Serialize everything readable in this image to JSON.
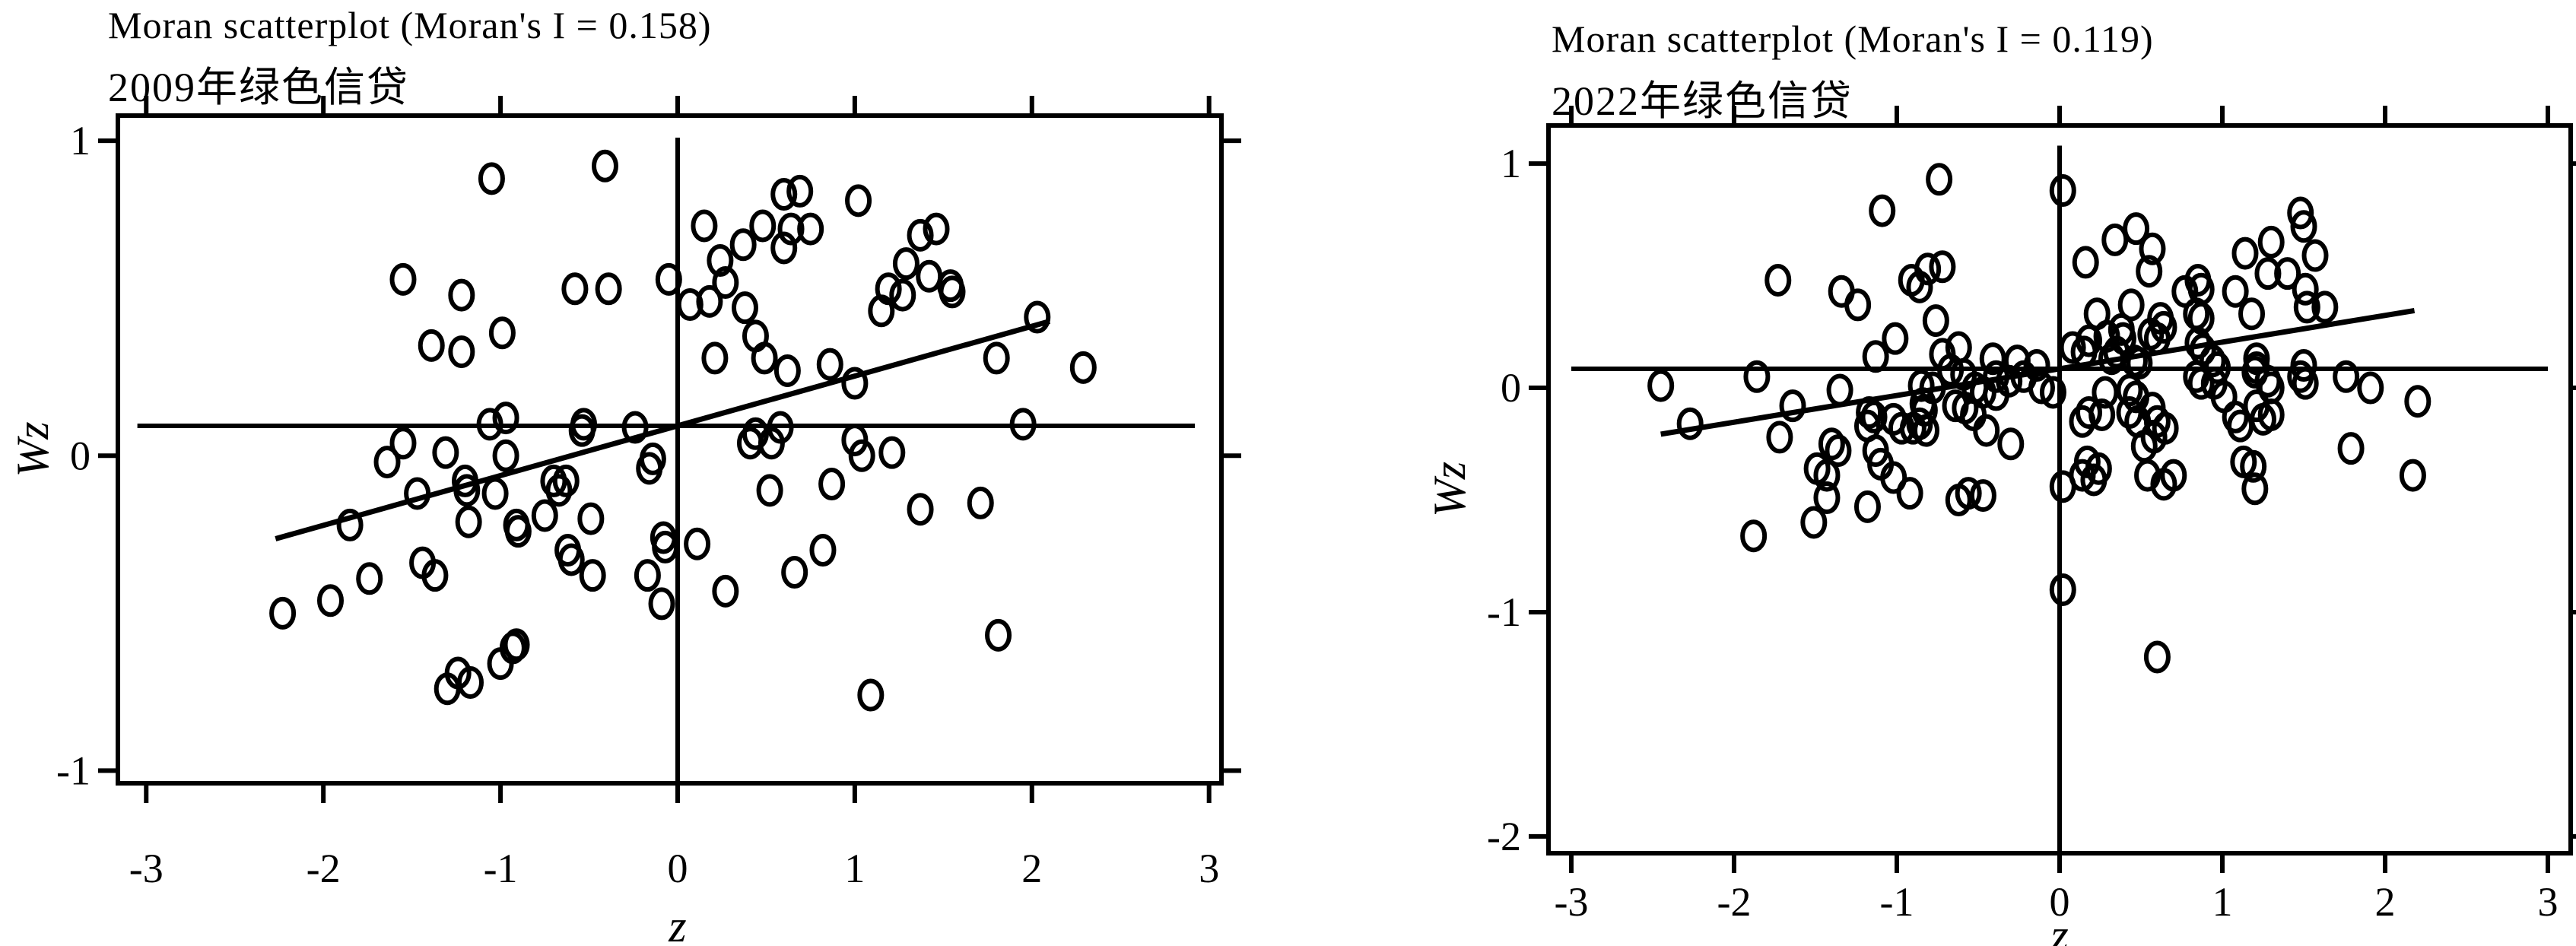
{
  "page": {
    "background": "#ffffff",
    "ink": "#000000"
  },
  "chart_data": {
    "type": "scatter",
    "figure_kind": "moran-scatterplot-pair",
    "style": {
      "stroke": "#000000",
      "frame_width": 6,
      "tick_width": 6,
      "tick_len": 26,
      "ref_line_width": 6,
      "fit_line_width": 7,
      "marker_rx": 14.5,
      "marker_ry": 18.5,
      "marker_stroke": 6,
      "tick_font_px": 54,
      "axis_label_font_px": 60
    },
    "plots": [
      {
        "id": "moran-2009",
        "title": "Moran scatterplot (Moran's I = 0.158)",
        "subtitle": "2009年绿色信贷",
        "moran_i": 0.158,
        "xlabel": "z",
        "ylabel": "Wz",
        "x_ticks": [
          -3,
          -2,
          -1,
          0,
          1,
          2,
          3
        ],
        "y_ticks": [
          1,
          0,
          -1
        ],
        "xlim": [
          -3.16,
          3.07
        ],
        "ylim": [
          -1.04,
          1.08
        ],
        "grid": false,
        "legend": "none",
        "marker": "open-circle",
        "vline_z": 0,
        "vline_top_wz": 1.01,
        "mean_line_wz": 0.095,
        "mean_line_z_range": [
          -3.05,
          2.92
        ],
        "fit_line": {
          "slope": 0.158,
          "intercept": 0.095,
          "z_start": -2.27,
          "z_end": 2.1
        },
        "points": [
          [
            -1.05,
            0.88
          ],
          [
            -0.41,
            0.92
          ],
          [
            -1.55,
            0.56
          ],
          [
            -1.22,
            0.51
          ],
          [
            -0.58,
            0.53
          ],
          [
            -0.39,
            0.53
          ],
          [
            -0.05,
            0.56
          ],
          [
            -0.99,
            0.39
          ],
          [
            -1.39,
            0.35
          ],
          [
            -1.22,
            0.33
          ],
          [
            -0.97,
            0.12
          ],
          [
            -0.53,
            0.1
          ],
          [
            -0.24,
            0.09
          ],
          [
            0.6,
            0.83
          ],
          [
            0.69,
            0.84
          ],
          [
            1.02,
            0.81
          ],
          [
            0.15,
            0.73
          ],
          [
            0.48,
            0.73
          ],
          [
            0.64,
            0.72
          ],
          [
            0.75,
            0.72
          ],
          [
            0.37,
            0.67
          ],
          [
            0.6,
            0.66
          ],
          [
            0.24,
            0.62
          ],
          [
            1.37,
            0.7
          ],
          [
            1.46,
            0.72
          ],
          [
            1.29,
            0.61
          ],
          [
            1.42,
            0.57
          ],
          [
            1.54,
            0.54
          ],
          [
            1.55,
            0.52
          ],
          [
            1.19,
            0.53
          ],
          [
            1.27,
            0.51
          ],
          [
            1.15,
            0.46
          ],
          [
            0.27,
            0.55
          ],
          [
            0.07,
            0.48
          ],
          [
            0.18,
            0.49
          ],
          [
            0.38,
            0.47
          ],
          [
            0.44,
            0.38
          ],
          [
            0.21,
            0.31
          ],
          [
            0.49,
            0.31
          ],
          [
            0.86,
            0.29
          ],
          [
            0.62,
            0.27
          ],
          [
            1.0,
            0.23
          ],
          [
            1.8,
            0.31
          ],
          [
            2.03,
            0.44
          ],
          [
            2.29,
            0.28
          ],
          [
            -1.06,
            0.1
          ],
          [
            -0.54,
            0.08
          ],
          [
            -1.55,
            0.04
          ],
          [
            -1.31,
            0.01
          ],
          [
            -1.64,
            -0.02
          ],
          [
            -0.97,
            0.0
          ],
          [
            -1.03,
            -0.12
          ],
          [
            -1.2,
            -0.08
          ],
          [
            -1.19,
            -0.11
          ],
          [
            -1.47,
            -0.12
          ],
          [
            -1.85,
            -0.22
          ],
          [
            -1.18,
            -0.21
          ],
          [
            -0.91,
            -0.22
          ],
          [
            -0.9,
            -0.24
          ],
          [
            -0.7,
            -0.08
          ],
          [
            -0.63,
            -0.08
          ],
          [
            -0.67,
            -0.11
          ],
          [
            -0.75,
            -0.19
          ],
          [
            -0.62,
            -0.3
          ],
          [
            -0.6,
            -0.33
          ],
          [
            -0.49,
            -0.2
          ],
          [
            -0.48,
            -0.38
          ],
          [
            -0.16,
            -0.04
          ],
          [
            -0.14,
            -0.01
          ],
          [
            -0.08,
            -0.26
          ],
          [
            -0.07,
            -0.29
          ],
          [
            -1.44,
            -0.34
          ],
          [
            -1.37,
            -0.38
          ],
          [
            -1.74,
            -0.39
          ],
          [
            -1.96,
            -0.46
          ],
          [
            -2.23,
            -0.5
          ],
          [
            -0.93,
            -0.61
          ],
          [
            -1.24,
            -0.69
          ],
          [
            -1.17,
            -0.72
          ],
          [
            -1.3,
            -0.74
          ],
          [
            -1.0,
            -0.66
          ],
          [
            -0.91,
            -0.6
          ],
          [
            -0.17,
            -0.38
          ],
          [
            -0.09,
            -0.47
          ],
          [
            1.95,
            0.1
          ],
          [
            0.41,
            0.04
          ],
          [
            0.53,
            0.04
          ],
          [
            0.58,
            0.09
          ],
          [
            0.44,
            0.07
          ],
          [
            1.0,
            0.05
          ],
          [
            1.04,
            0.0
          ],
          [
            1.21,
            0.01
          ],
          [
            0.52,
            -0.11
          ],
          [
            0.87,
            -0.09
          ],
          [
            1.37,
            -0.17
          ],
          [
            1.71,
            -0.15
          ],
          [
            0.11,
            -0.28
          ],
          [
            0.82,
            -0.3
          ],
          [
            0.66,
            -0.37
          ],
          [
            0.27,
            -0.43
          ],
          [
            1.81,
            -0.57
          ],
          [
            1.09,
            -0.76
          ]
        ]
      },
      {
        "id": "moran-2022",
        "title": "Moran scatterplot (Moran's I = 0.119)",
        "subtitle": "2022年绿色信贷",
        "moran_i": 0.119,
        "xlabel": "z",
        "ylabel": "Wz",
        "x_ticks": [
          -3,
          -2,
          -1,
          0,
          1,
          2,
          3
        ],
        "y_ticks": [
          1,
          0,
          -1,
          -2
        ],
        "xlim": [
          -3.14,
          3.14
        ],
        "ylim": [
          -2.075,
          1.17
        ],
        "grid": false,
        "legend": "none",
        "marker": "open-circle",
        "vline_z": 0,
        "vline_top_wz": 1.08,
        "mean_line_wz": 0.085,
        "mean_line_z_range": [
          -3.0,
          3.0
        ],
        "fit_line": {
          "slope": 0.119,
          "intercept": 0.085,
          "z_start": -2.45,
          "z_end": 2.18
        },
        "points": [
          [
            -0.74,
            0.93
          ],
          [
            -1.09,
            0.79
          ],
          [
            -0.81,
            0.53
          ],
          [
            -0.72,
            0.54
          ],
          [
            -0.91,
            0.48
          ],
          [
            -0.86,
            0.45
          ],
          [
            -1.73,
            0.48
          ],
          [
            -1.34,
            0.43
          ],
          [
            -1.24,
            0.37
          ],
          [
            -0.76,
            0.3
          ],
          [
            -1.01,
            0.22
          ],
          [
            -1.13,
            0.14
          ],
          [
            -0.72,
            0.15
          ],
          [
            -0.62,
            0.18
          ],
          [
            -0.41,
            0.13
          ],
          [
            -0.26,
            0.12
          ],
          [
            -0.14,
            0.1
          ],
          [
            -2.45,
            0.01
          ],
          [
            -1.86,
            0.05
          ],
          [
            -1.35,
            -0.01
          ],
          [
            -1.64,
            -0.08
          ],
          [
            -0.85,
            0.01
          ],
          [
            -0.78,
            0.0
          ],
          [
            -0.84,
            -0.07
          ],
          [
            -0.83,
            -0.1
          ],
          [
            -0.86,
            -0.16
          ],
          [
            -0.82,
            -0.19
          ],
          [
            -0.67,
            0.08
          ],
          [
            -0.59,
            0.06
          ],
          [
            -0.52,
            0.0
          ],
          [
            -0.64,
            -0.08
          ],
          [
            -0.58,
            -0.09
          ],
          [
            -0.39,
            0.05
          ],
          [
            -0.31,
            0.03
          ],
          [
            -0.22,
            0.05
          ],
          [
            -0.39,
            -0.03
          ],
          [
            -0.47,
            -0.02
          ],
          [
            -1.17,
            -0.11
          ],
          [
            -1.14,
            -0.13
          ],
          [
            -1.18,
            -0.17
          ],
          [
            -1.02,
            -0.14
          ],
          [
            -0.97,
            -0.18
          ],
          [
            -0.9,
            -0.18
          ],
          [
            -2.27,
            -0.16
          ],
          [
            -1.72,
            -0.22
          ],
          [
            -1.4,
            -0.25
          ],
          [
            -1.36,
            -0.28
          ],
          [
            -1.49,
            -0.36
          ],
          [
            -1.43,
            -0.39
          ],
          [
            -1.13,
            -0.28
          ],
          [
            -1.1,
            -0.34
          ],
          [
            -1.02,
            -0.4
          ],
          [
            -0.53,
            -0.12
          ],
          [
            -0.45,
            -0.19
          ],
          [
            -0.3,
            -0.25
          ],
          [
            -0.11,
            0.0
          ],
          [
            -0.04,
            -0.02
          ],
          [
            0.02,
            0.88
          ],
          [
            1.48,
            0.78
          ],
          [
            1.5,
            0.72
          ],
          [
            0.47,
            0.71
          ],
          [
            0.34,
            0.66
          ],
          [
            0.57,
            0.62
          ],
          [
            0.55,
            0.52
          ],
          [
            0.16,
            0.56
          ],
          [
            1.14,
            0.6
          ],
          [
            1.3,
            0.65
          ],
          [
            1.28,
            0.51
          ],
          [
            1.4,
            0.51
          ],
          [
            1.57,
            0.59
          ],
          [
            0.85,
            0.48
          ],
          [
            0.87,
            0.44
          ],
          [
            0.77,
            0.43
          ],
          [
            1.08,
            0.43
          ],
          [
            1.51,
            0.44
          ],
          [
            1.52,
            0.36
          ],
          [
            1.63,
            0.36
          ],
          [
            0.44,
            0.37
          ],
          [
            0.23,
            0.33
          ],
          [
            1.18,
            0.33
          ],
          [
            0.84,
            0.33
          ],
          [
            0.87,
            0.31
          ],
          [
            0.62,
            0.31
          ],
          [
            0.64,
            0.27
          ],
          [
            0.56,
            0.24
          ],
          [
            0.6,
            0.22
          ],
          [
            0.38,
            0.26
          ],
          [
            0.39,
            0.22
          ],
          [
            0.29,
            0.23
          ],
          [
            0.18,
            0.21
          ],
          [
            0.08,
            0.18
          ],
          [
            0.15,
            0.16
          ],
          [
            0.35,
            0.16
          ],
          [
            0.32,
            0.13
          ],
          [
            0.46,
            0.12
          ],
          [
            0.49,
            0.11
          ],
          [
            0.85,
            0.2
          ],
          [
            0.88,
            0.17
          ],
          [
            0.94,
            0.12
          ],
          [
            0.97,
            0.09
          ],
          [
            1.21,
            0.13
          ],
          [
            1.21,
            0.09
          ],
          [
            1.5,
            0.1
          ],
          [
            0.84,
            0.05
          ],
          [
            0.87,
            0.02
          ],
          [
            0.95,
            0.02
          ],
          [
            1.2,
            0.07
          ],
          [
            1.28,
            0.03
          ],
          [
            1.3,
            0.0
          ],
          [
            1.48,
            0.05
          ],
          [
            1.51,
            0.02
          ],
          [
            1.76,
            0.05
          ],
          [
            1.91,
            0.0
          ],
          [
            2.2,
            -0.06
          ],
          [
            0.28,
            -0.02
          ],
          [
            0.26,
            -0.12
          ],
          [
            0.18,
            -0.11
          ],
          [
            0.14,
            -0.15
          ],
          [
            0.43,
            -0.01
          ],
          [
            0.47,
            -0.04
          ],
          [
            0.43,
            -0.11
          ],
          [
            0.48,
            -0.15
          ],
          [
            0.57,
            -0.09
          ],
          [
            0.6,
            -0.15
          ],
          [
            0.65,
            -0.18
          ],
          [
            0.58,
            -0.22
          ],
          [
            0.52,
            -0.26
          ],
          [
            1.01,
            -0.04
          ],
          [
            1.08,
            -0.13
          ],
          [
            1.11,
            -0.17
          ],
          [
            1.21,
            -0.08
          ],
          [
            1.25,
            -0.14
          ],
          [
            1.3,
            -0.12
          ],
          [
            0.17,
            -0.33
          ],
          [
            0.24,
            -0.36
          ],
          [
            0.14,
            -0.39
          ],
          [
            0.21,
            -0.41
          ],
          [
            0.54,
            -0.39
          ],
          [
            0.7,
            -0.39
          ],
          [
            1.13,
            -0.33
          ],
          [
            1.19,
            -0.35
          ],
          [
            1.79,
            -0.27
          ],
          [
            2.17,
            -0.39
          ],
          [
            0.02,
            -0.44
          ],
          [
            0.64,
            -0.43
          ],
          [
            1.2,
            -0.45
          ],
          [
            -1.88,
            -0.66
          ],
          [
            -1.51,
            -0.6
          ],
          [
            -1.43,
            -0.49
          ],
          [
            -1.18,
            -0.53
          ],
          [
            -0.92,
            -0.47
          ],
          [
            -0.62,
            -0.5
          ],
          [
            -0.56,
            -0.47
          ],
          [
            -0.47,
            -0.48
          ],
          [
            0.02,
            -0.9
          ],
          [
            0.6,
            -1.2
          ]
        ]
      }
    ]
  }
}
